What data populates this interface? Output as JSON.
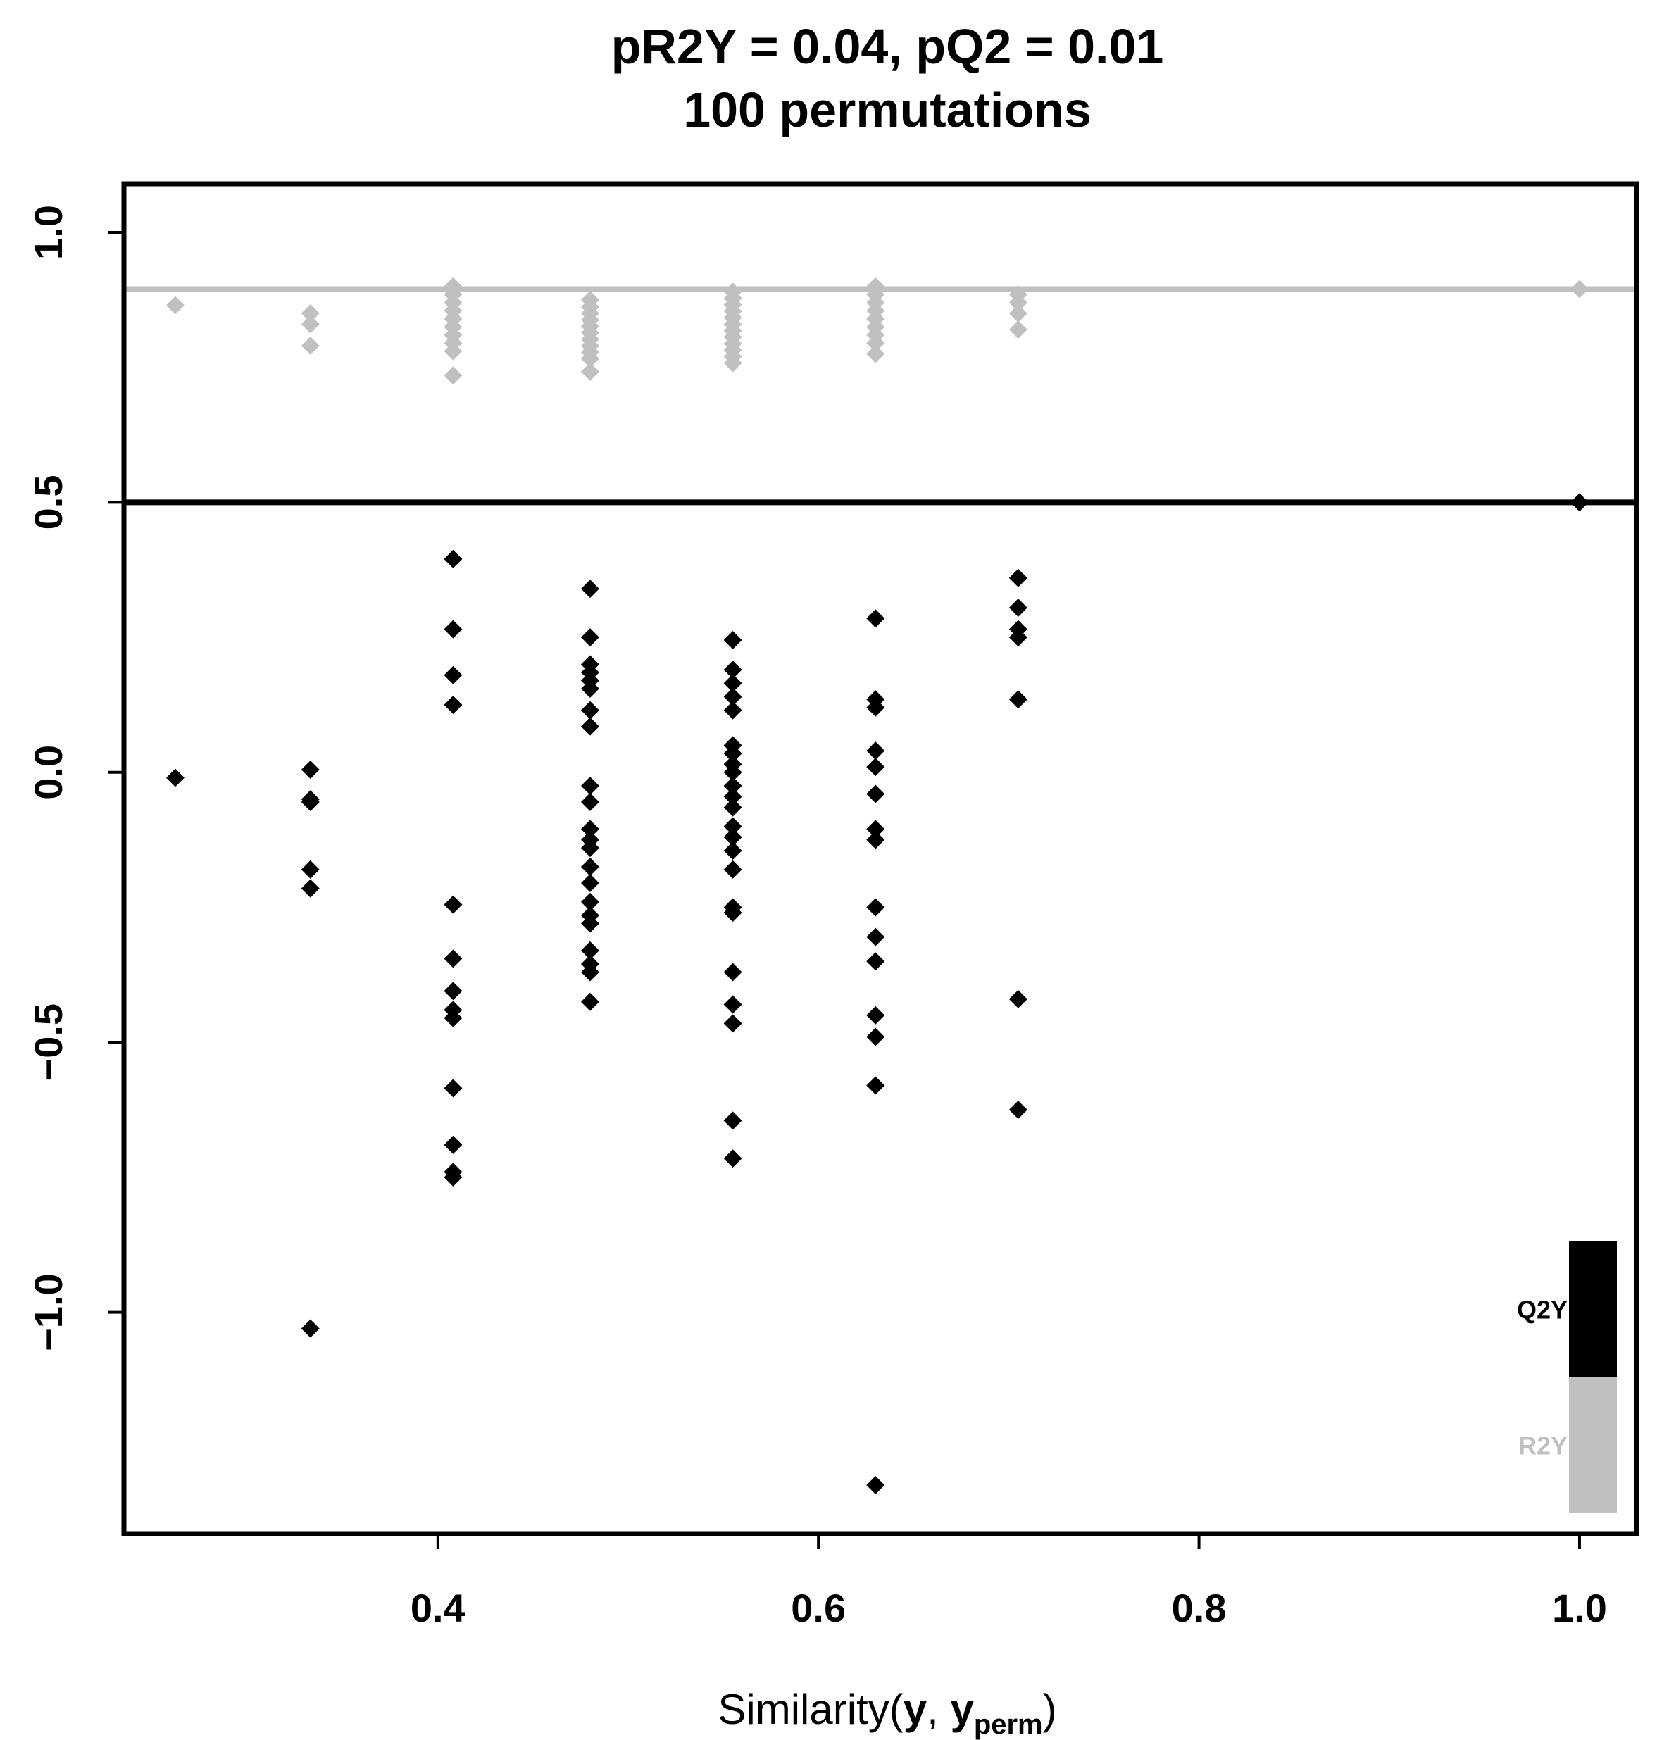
{
  "chart_data": {
    "type": "scatter",
    "title": "pR2Y = 0.04, pQ2 = 0.01",
    "subtitle": "100 permutations",
    "xlabel": {
      "prefix": "Similarity(",
      "y": "y",
      "comma": ", ",
      "yperm": "y",
      "yperm_subscript": "perm",
      "suffix": ")"
    },
    "ylabel": "",
    "xlim": [
      0.235,
      1.03
    ],
    "ylim": [
      -1.41,
      1.09
    ],
    "x_ticks": [
      {
        "value": 0.4,
        "label": "0.4"
      },
      {
        "value": 0.6,
        "label": "0.6"
      },
      {
        "value": 0.8,
        "label": "0.8"
      },
      {
        "value": 1.0,
        "label": "1.0"
      }
    ],
    "y_ticks": [
      {
        "value": 1.0,
        "label": "1.0"
      },
      {
        "value": 0.5,
        "label": "0.5"
      },
      {
        "value": 0.0,
        "label": "0.0"
      },
      {
        "value": -0.5,
        "label": "−0.5"
      },
      {
        "value": -1.0,
        "label": "−1.0"
      }
    ],
    "grid": false,
    "legend_position": "bottom-right",
    "reference_lines": [
      {
        "series": "R2Y",
        "y": 0.895,
        "color": "#c0c0c0"
      },
      {
        "series": "Q2Y",
        "y": 0.5,
        "color": "#000000"
      }
    ],
    "series": [
      {
        "name": "R2Y",
        "color": "#c0c0c0",
        "points": [
          [
            0.262,
            0.865
          ],
          [
            0.333,
            0.85
          ],
          [
            0.333,
            0.83
          ],
          [
            0.333,
            0.79
          ],
          [
            0.408,
            0.9
          ],
          [
            0.408,
            0.885
          ],
          [
            0.408,
            0.87
          ],
          [
            0.408,
            0.855
          ],
          [
            0.408,
            0.84
          ],
          [
            0.408,
            0.825
          ],
          [
            0.408,
            0.81
          ],
          [
            0.408,
            0.795
          ],
          [
            0.408,
            0.78
          ],
          [
            0.408,
            0.735
          ],
          [
            0.48,
            0.875
          ],
          [
            0.48,
            0.862
          ],
          [
            0.48,
            0.85
          ],
          [
            0.48,
            0.838
          ],
          [
            0.48,
            0.826
          ],
          [
            0.48,
            0.814
          ],
          [
            0.48,
            0.802
          ],
          [
            0.48,
            0.79
          ],
          [
            0.48,
            0.778
          ],
          [
            0.48,
            0.766
          ],
          [
            0.48,
            0.742
          ],
          [
            0.555,
            0.89
          ],
          [
            0.555,
            0.878
          ],
          [
            0.555,
            0.866
          ],
          [
            0.555,
            0.854
          ],
          [
            0.555,
            0.842
          ],
          [
            0.555,
            0.83
          ],
          [
            0.555,
            0.818
          ],
          [
            0.555,
            0.806
          ],
          [
            0.555,
            0.794
          ],
          [
            0.555,
            0.782
          ],
          [
            0.555,
            0.77
          ],
          [
            0.555,
            0.758
          ],
          [
            0.63,
            0.9
          ],
          [
            0.63,
            0.885
          ],
          [
            0.63,
            0.87
          ],
          [
            0.63,
            0.855
          ],
          [
            0.63,
            0.84
          ],
          [
            0.63,
            0.825
          ],
          [
            0.63,
            0.81
          ],
          [
            0.63,
            0.795
          ],
          [
            0.63,
            0.775
          ],
          [
            0.705,
            0.885
          ],
          [
            0.705,
            0.87
          ],
          [
            0.705,
            0.85
          ],
          [
            0.705,
            0.82
          ],
          [
            1.0,
            0.895
          ]
        ]
      },
      {
        "name": "Q2Y",
        "color": "#000000",
        "points": [
          [
            0.262,
            -0.01
          ],
          [
            0.333,
            0.005
          ],
          [
            0.333,
            -0.05
          ],
          [
            0.333,
            -0.055
          ],
          [
            0.333,
            -0.18
          ],
          [
            0.333,
            -0.215
          ],
          [
            0.333,
            -1.03
          ],
          [
            0.408,
            0.395
          ],
          [
            0.408,
            0.265
          ],
          [
            0.408,
            0.18
          ],
          [
            0.408,
            0.125
          ],
          [
            0.408,
            -0.245
          ],
          [
            0.408,
            -0.345
          ],
          [
            0.408,
            -0.405
          ],
          [
            0.408,
            -0.44
          ],
          [
            0.408,
            -0.455
          ],
          [
            0.408,
            -0.585
          ],
          [
            0.408,
            -0.69
          ],
          [
            0.408,
            -0.74
          ],
          [
            0.408,
            -0.75
          ],
          [
            0.48,
            0.34
          ],
          [
            0.48,
            0.25
          ],
          [
            0.48,
            0.2
          ],
          [
            0.48,
            0.185
          ],
          [
            0.48,
            0.17
          ],
          [
            0.48,
            0.155
          ],
          [
            0.48,
            0.115
          ],
          [
            0.48,
            0.085
          ],
          [
            0.48,
            -0.025
          ],
          [
            0.48,
            -0.055
          ],
          [
            0.48,
            -0.105
          ],
          [
            0.48,
            -0.125
          ],
          [
            0.48,
            -0.14
          ],
          [
            0.48,
            -0.175
          ],
          [
            0.48,
            -0.205
          ],
          [
            0.48,
            -0.24
          ],
          [
            0.48,
            -0.265
          ],
          [
            0.48,
            -0.28
          ],
          [
            0.48,
            -0.33
          ],
          [
            0.48,
            -0.355
          ],
          [
            0.48,
            -0.37
          ],
          [
            0.48,
            -0.425
          ],
          [
            0.555,
            0.245
          ],
          [
            0.555,
            0.19
          ],
          [
            0.555,
            0.165
          ],
          [
            0.555,
            0.14
          ],
          [
            0.555,
            0.115
          ],
          [
            0.555,
            0.05
          ],
          [
            0.555,
            0.035
          ],
          [
            0.555,
            0.015
          ],
          [
            0.555,
            0.0
          ],
          [
            0.555,
            -0.025
          ],
          [
            0.555,
            -0.045
          ],
          [
            0.555,
            -0.065
          ],
          [
            0.555,
            -0.1
          ],
          [
            0.555,
            -0.12
          ],
          [
            0.555,
            -0.145
          ],
          [
            0.555,
            -0.18
          ],
          [
            0.555,
            -0.25
          ],
          [
            0.555,
            -0.26
          ],
          [
            0.555,
            -0.37
          ],
          [
            0.555,
            -0.43
          ],
          [
            0.555,
            -0.465
          ],
          [
            0.555,
            -0.645
          ],
          [
            0.555,
            -0.715
          ],
          [
            0.63,
            0.285
          ],
          [
            0.63,
            0.135
          ],
          [
            0.63,
            0.12
          ],
          [
            0.63,
            0.04
          ],
          [
            0.63,
            0.01
          ],
          [
            0.63,
            -0.04
          ],
          [
            0.63,
            -0.105
          ],
          [
            0.63,
            -0.125
          ],
          [
            0.63,
            -0.25
          ],
          [
            0.63,
            -0.305
          ],
          [
            0.63,
            -0.35
          ],
          [
            0.63,
            -0.45
          ],
          [
            0.63,
            -0.49
          ],
          [
            0.63,
            -0.58
          ],
          [
            0.63,
            -1.32
          ],
          [
            0.705,
            0.36
          ],
          [
            0.705,
            0.305
          ],
          [
            0.705,
            0.265
          ],
          [
            0.705,
            0.25
          ],
          [
            0.705,
            0.135
          ],
          [
            0.705,
            -0.42
          ],
          [
            0.705,
            -0.625
          ],
          [
            1.0,
            0.5
          ]
        ]
      }
    ],
    "legend": [
      {
        "label": "Q2Y",
        "color": "#000000"
      },
      {
        "label": "R2Y",
        "color": "#c0c0c0"
      }
    ]
  }
}
